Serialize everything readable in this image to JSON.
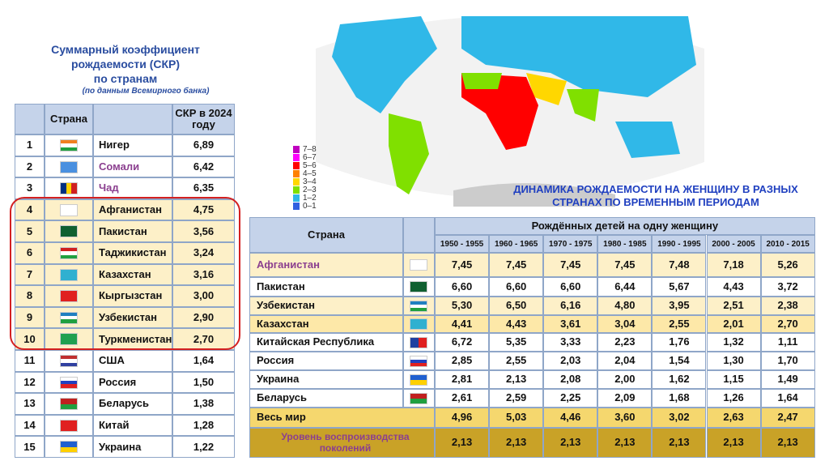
{
  "left": {
    "title": [
      "Суммарный коэффициент",
      "рождаемости (СКР)",
      "по странам"
    ],
    "subtitle": "(по данным Всемирного банка)",
    "headers": {
      "country": "Страна",
      "value": "СКР в 2024 году"
    },
    "rows": [
      {
        "rank": "1",
        "country": "Нигер",
        "value": "6,89"
      },
      {
        "rank": "2",
        "country": "Сомали",
        "value": "6,42",
        "name_color": "#8b3f8f"
      },
      {
        "rank": "3",
        "country": "Чад",
        "value": "6,35",
        "name_color": "#8b3f8f"
      },
      {
        "rank": "4",
        "country": "Афганистан",
        "value": "4,75"
      },
      {
        "rank": "5",
        "country": "Пакистан",
        "value": "3,56"
      },
      {
        "rank": "6",
        "country": "Таджикистан",
        "value": "3,24"
      },
      {
        "rank": "7",
        "country": "Казахстан",
        "value": "3,16"
      },
      {
        "rank": "8",
        "country": "Кыргызстан",
        "value": "3,00"
      },
      {
        "rank": "9",
        "country": "Узбекистан",
        "value": "2,90"
      },
      {
        "rank": "10",
        "country": "Туркменистан",
        "value": "2,70"
      },
      {
        "rank": "11",
        "country": "США",
        "value": "1,64"
      },
      {
        "rank": "12",
        "country": "Россия",
        "value": "1,50"
      },
      {
        "rank": "13",
        "country": "Беларусь",
        "value": "1,38"
      },
      {
        "rank": "14",
        "country": "Китай",
        "value": "1,28"
      },
      {
        "rank": "15",
        "country": "Украина",
        "value": "1,22"
      }
    ]
  },
  "legend": [
    {
      "label": "7–8",
      "color": "#c000c0"
    },
    {
      "label": "6–7",
      "color": "#ff00ff"
    },
    {
      "label": "5–6",
      "color": "#ff0000"
    },
    {
      "label": "4–5",
      "color": "#ff8000"
    },
    {
      "label": "3–4",
      "color": "#ffd700"
    },
    {
      "label": "2–3",
      "color": "#80e000"
    },
    {
      "label": "1–2",
      "color": "#30b8e8"
    },
    {
      "label": "0–1",
      "color": "#3060e0"
    }
  ],
  "right": {
    "title": [
      "ДИНАМИКА РОЖДАЕМОСТИ НА ЖЕНЩИНУ В РАЗНЫХ",
      "СТРАНАХ ПО ВРЕМЕННЫМ ПЕРИОДАМ"
    ],
    "headers": {
      "country": "Страна",
      "group": "Рождённых детей на одну женщину"
    },
    "periods": [
      "1950 - 1955",
      "1960 - 1965",
      "1970 - 1975",
      "1980 - 1985",
      "1990 - 1995",
      "2000 - 2005",
      "2010 - 2015"
    ],
    "rows": [
      {
        "country": "Афганистан",
        "values": [
          "7,45",
          "7,45",
          "7,45",
          "7,45",
          "7,48",
          "7,18",
          "5,26"
        ],
        "name_color": "#8b3f8f"
      },
      {
        "country": "Пакистан",
        "values": [
          "6,60",
          "6,60",
          "6,60",
          "6,44",
          "5,67",
          "4,43",
          "3,72"
        ]
      },
      {
        "country": "Узбекистан",
        "values": [
          "5,30",
          "6,50",
          "6,16",
          "4,80",
          "3,95",
          "2,51",
          "2,38"
        ]
      },
      {
        "country": "Казахстан",
        "values": [
          "4,41",
          "4,43",
          "3,61",
          "3,04",
          "2,55",
          "2,01",
          "2,70"
        ]
      },
      {
        "country": "Китайская Республика",
        "values": [
          "6,72",
          "5,35",
          "3,33",
          "2,23",
          "1,76",
          "1,32",
          "1,11"
        ]
      },
      {
        "country": "Россия",
        "values": [
          "2,85",
          "2,55",
          "2,03",
          "2,04",
          "1,54",
          "1,30",
          "1,70"
        ]
      },
      {
        "country": "Украина",
        "values": [
          "2,81",
          "2,13",
          "2,08",
          "2,00",
          "1,62",
          "1,15",
          "1,49"
        ]
      },
      {
        "country": "Беларусь",
        "values": [
          "2,61",
          "2,59",
          "2,25",
          "2,09",
          "1,68",
          "1,26",
          "1,64"
        ]
      },
      {
        "country": "Весь мир",
        "values": [
          "4,96",
          "5,03",
          "4,46",
          "3,60",
          "3,02",
          "2,63",
          "2,47"
        ]
      },
      {
        "country": "Уровень воспроизводства поколений",
        "values": [
          "2,13",
          "2,13",
          "2,13",
          "2,13",
          "2,13",
          "2,13",
          "2,13"
        ],
        "name_color": "#8b3f8f"
      }
    ]
  }
}
